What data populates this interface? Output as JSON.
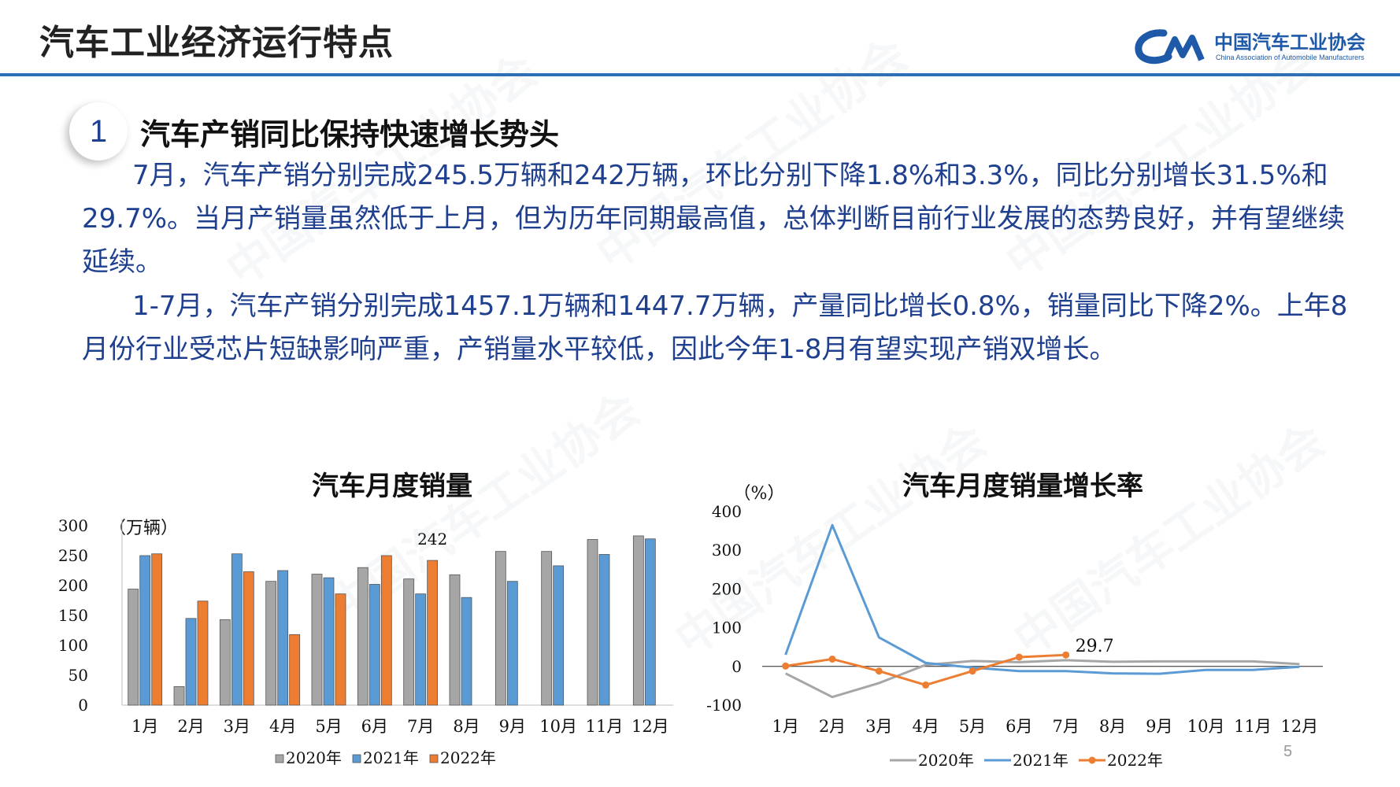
{
  "header": {
    "title": "汽车工业经济运行特点",
    "logo_cn": "中国汽车工业协会",
    "logo_en": "China Association of Automobile Manufacturers"
  },
  "section": {
    "number": "1",
    "heading": "汽车产销同比保持快速增长势头"
  },
  "paragraphs": [
    "7月，汽车产销分别完成245.5万辆和242万辆，环比分别下降1.8%和3.3%，同比分别增长31.5%和29.7%。当月产销量虽然低于上月，但为历年同期最高值，总体判断目前行业发展的态势良好，并有望继续延续。",
    "1-7月，汽车产销分别完成1457.1万辆和1447.7万辆，产量同比增长0.8%，销量同比下降2%。上年8月份行业受芯片短缺影响严重，产销量水平较低，因此今年1-8月有望实现产销双增长。"
  ],
  "page_number": "5",
  "chart_data": [
    {
      "type": "bar",
      "title": "汽车月度销量",
      "ylabel": "（万辆）",
      "ylim": [
        0,
        300
      ],
      "yticks": [
        "0",
        "50",
        "100",
        "150",
        "200",
        "250",
        "300"
      ],
      "categories": [
        "1月",
        "2月",
        "3月",
        "4月",
        "5月",
        "6月",
        "7月",
        "8月",
        "9月",
        "10月",
        "11月",
        "12月"
      ],
      "series": [
        {
          "name": "2020年",
          "color": "#a6a6a6",
          "values": [
            194,
            31,
            143,
            207,
            219,
            230,
            211,
            218,
            257,
            257,
            277,
            283
          ]
        },
        {
          "name": "2021年",
          "color": "#5b9bd5",
          "values": [
            250,
            145,
            253,
            225,
            213,
            202,
            186,
            180,
            207,
            233,
            252,
            278
          ]
        },
        {
          "name": "2022年",
          "color": "#ed7d31",
          "values": [
            253,
            174,
            223,
            118,
            186,
            250,
            242,
            null,
            null,
            null,
            null,
            null
          ]
        }
      ],
      "annotations": [
        {
          "category": "7月",
          "text": "242"
        }
      ],
      "legend": "bottom"
    },
    {
      "type": "line",
      "title": "汽车月度销量增长率",
      "ylabel": "（%）",
      "ylim": [
        -100,
        400
      ],
      "yticks": [
        "-100",
        "0",
        "100",
        "200",
        "300",
        "400"
      ],
      "categories": [
        "1月",
        "2月",
        "3月",
        "4月",
        "5月",
        "6月",
        "7月",
        "8月",
        "9月",
        "10月",
        "11月",
        "12月"
      ],
      "series": [
        {
          "name": "2020年",
          "color": "#a6a6a6",
          "values": [
            -18,
            -79,
            -43,
            4,
            14,
            11,
            16,
            12,
            13,
            13,
            13,
            6
          ]
        },
        {
          "name": "2021年",
          "color": "#5b9bd5",
          "values": [
            30,
            365,
            75,
            9,
            -3,
            -12,
            -12,
            -18,
            -19,
            -9,
            -9,
            -1
          ]
        },
        {
          "name": "2022年",
          "color": "#ed7d31",
          "values": [
            1,
            19,
            -12,
            -48,
            -12,
            24,
            29.7,
            null,
            null,
            null,
            null,
            null
          ]
        }
      ],
      "annotations": [
        {
          "category": "7月",
          "text": "29.7"
        }
      ],
      "legend": "bottom"
    }
  ]
}
